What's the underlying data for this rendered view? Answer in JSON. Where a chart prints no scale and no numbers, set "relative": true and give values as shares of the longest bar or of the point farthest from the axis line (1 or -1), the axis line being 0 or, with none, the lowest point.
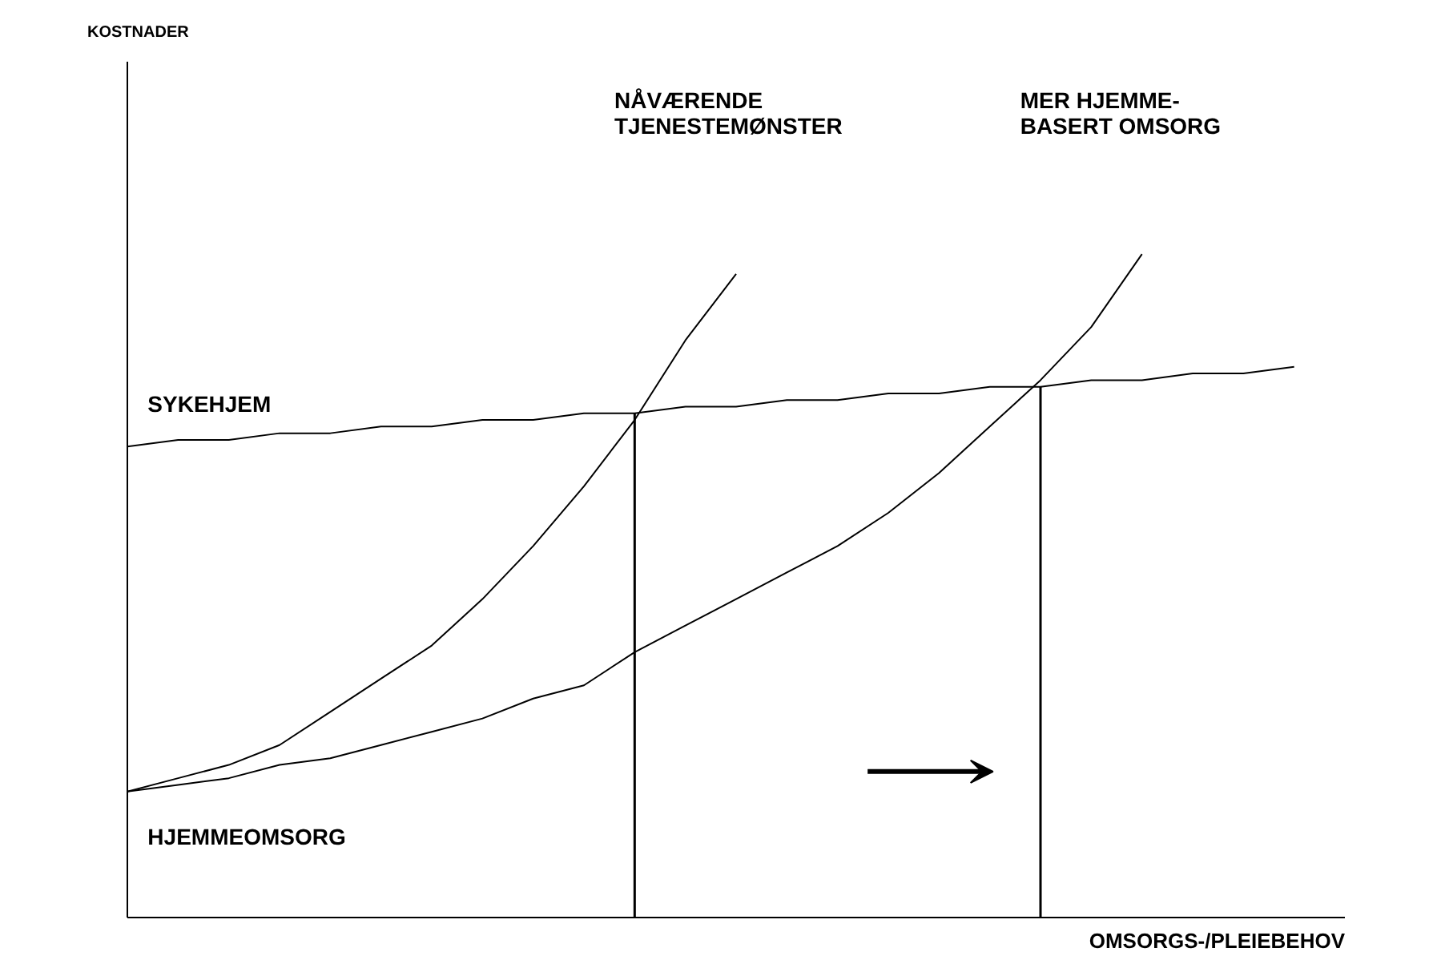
{
  "chart_data": {
    "type": "line",
    "relative": true,
    "xlabel": "OMSORGS-/PLEIEBEHOV",
    "marker": "none",
    "line_style": "solid",
    "categories": [
      null,
      null,
      null,
      null,
      null,
      null,
      null,
      null,
      null,
      null,
      null,
      null,
      null,
      null,
      null,
      null,
      null,
      null,
      null,
      null,
      null,
      null,
      null,
      null
    ],
    "series": [
      {
        "color": "#000000",
        "values": [
          0.19,
          0.21,
          0.23,
          0.26,
          0.31,
          0.36,
          0.41,
          0.48,
          0.56,
          0.65,
          0.75,
          0.87,
          0.97,
          null,
          null,
          null,
          null,
          null,
          null,
          null,
          null,
          null,
          null,
          null
        ]
      },
      {
        "color": "#000000",
        "values": [
          0.19,
          0.2,
          0.21,
          0.23,
          0.24,
          0.26,
          0.28,
          0.3,
          0.33,
          0.35,
          0.4,
          0.44,
          0.48,
          0.52,
          0.56,
          0.61,
          0.67,
          0.74,
          0.81,
          0.89,
          1,
          null,
          null,
          null
        ]
      },
      {
        "name": "SYKEHJEM",
        "color": "#000000",
        "values": [
          0.71,
          0.72,
          0.72,
          0.73,
          0.73,
          0.74,
          0.74,
          0.75,
          0.75,
          0.76,
          0.76,
          0.77,
          0.77,
          0.78,
          0.78,
          0.79,
          0.79,
          0.8,
          0.8,
          0.81,
          0.81,
          0.82,
          0.82,
          0.83
        ]
      }
    ],
    "annotations": [
      "NÅVÆRENDE\nTJENESTEMØNSTER",
      "MER HJEMME-\nBASERT OMSORG",
      "HJEMMEOMSORG",
      "KOSTNADER"
    ]
  }
}
